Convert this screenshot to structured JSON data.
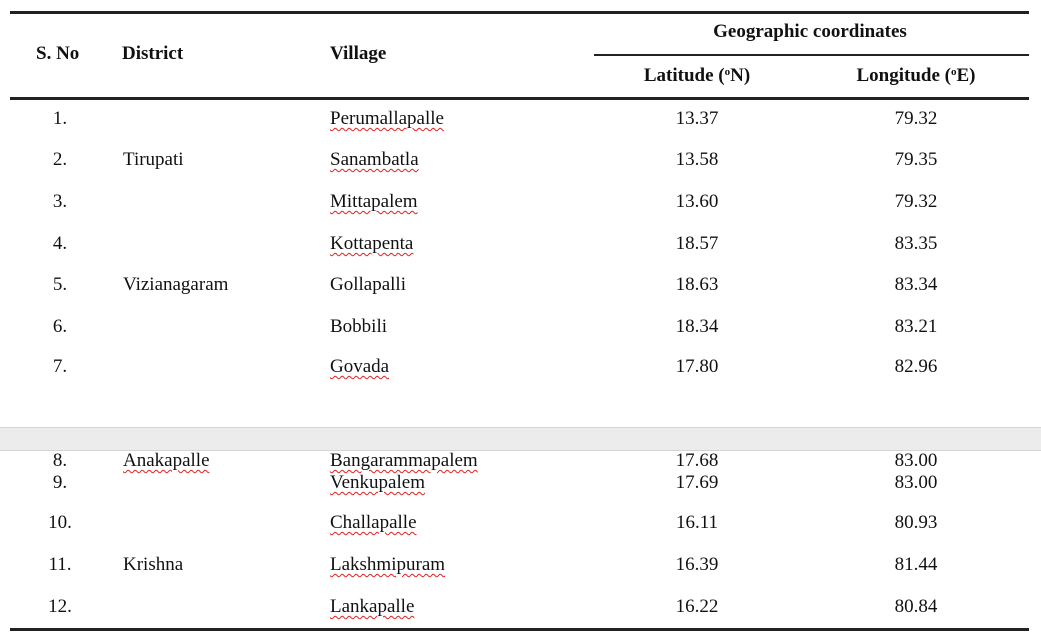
{
  "table": {
    "headers": {
      "sno": "S. No",
      "district": "District",
      "village": "Village",
      "geo": "Geographic coordinates",
      "lat_main": "Latitude (",
      "lat_sup": "o",
      "lat_end": "N)",
      "lon_main": "Longitude (",
      "lon_sup": "o",
      "lon_end": "E)"
    },
    "rows": [
      {
        "sno": "1.",
        "district": "",
        "village": "Perumallapalle",
        "lat": "13.37",
        "lon": "79.32"
      },
      {
        "sno": "2.",
        "district": "Tirupati",
        "village": "Sanambatla",
        "lat": "13.58",
        "lon": "79.35"
      },
      {
        "sno": "3.",
        "district": "",
        "village": "Mittapalem",
        "lat": "13.60",
        "lon": "79.32"
      },
      {
        "sno": "4.",
        "district": "",
        "village": "Kottapenta",
        "lat": "18.57",
        "lon": "83.35"
      },
      {
        "sno": "5.",
        "district": "Vizianagaram",
        "village": "Gollapalli",
        "lat": "18.63",
        "lon": "83.34"
      },
      {
        "sno": "6.",
        "district": "",
        "village": "Bobbili",
        "lat": "18.34",
        "lon": "83.21"
      },
      {
        "sno": "7.",
        "district": "",
        "village": "Govada",
        "lat": "17.80",
        "lon": "82.96"
      },
      {
        "sno": "8.",
        "district": "Anakapalle",
        "village": "Bangarammapalem",
        "lat": "17.68",
        "lon": "83.00"
      },
      {
        "sno": "9.",
        "district": "",
        "village": "Venkupalem",
        "lat": "17.69",
        "lon": "83.00"
      },
      {
        "sno": "10.",
        "district": "",
        "village": "Challapalle",
        "lat": "16.11",
        "lon": "80.93"
      },
      {
        "sno": "11.",
        "district": "Krishna",
        "village": "Lakshmipuram",
        "lat": "16.39",
        "lon": "81.44"
      },
      {
        "sno": "12.",
        "district": "",
        "village": "Lankapalle",
        "lat": "16.22",
        "lon": "80.84"
      }
    ]
  }
}
